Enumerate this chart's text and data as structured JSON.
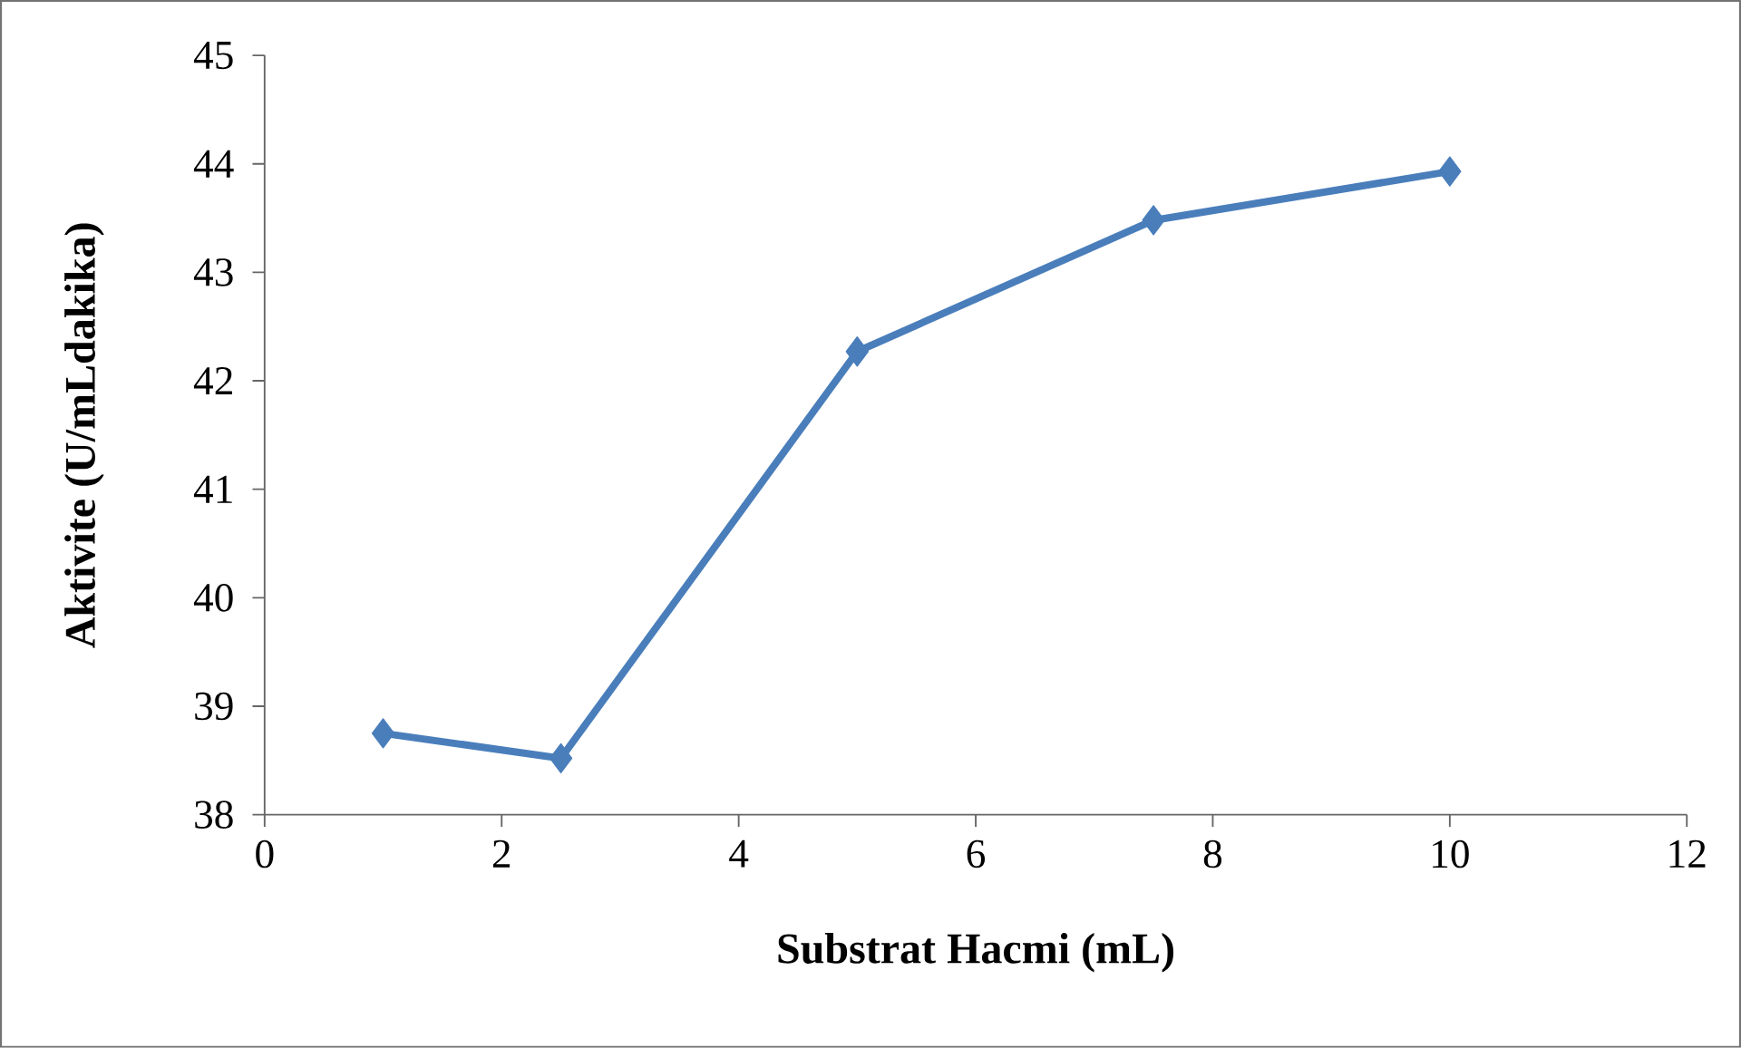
{
  "chart_data": {
    "type": "line",
    "xlabel": "Substrat Hacmi (mL)",
    "ylabel": "Aktivite (U/mLdakika)",
    "x": [
      1,
      2.5,
      5,
      7.5,
      10
    ],
    "series": [
      {
        "color": "#4a7ebb",
        "values": [
          38.75,
          38.52,
          42.27,
          43.48,
          43.93
        ]
      }
    ],
    "xlim": [
      0,
      12
    ],
    "xticks": [
      0,
      2,
      4,
      6,
      8,
      10,
      12
    ],
    "ylim": [
      38,
      45
    ],
    "yticks": [
      38,
      39,
      40,
      41,
      42,
      43,
      44,
      45
    ],
    "marker": "diamond",
    "line_style": "solid"
  }
}
